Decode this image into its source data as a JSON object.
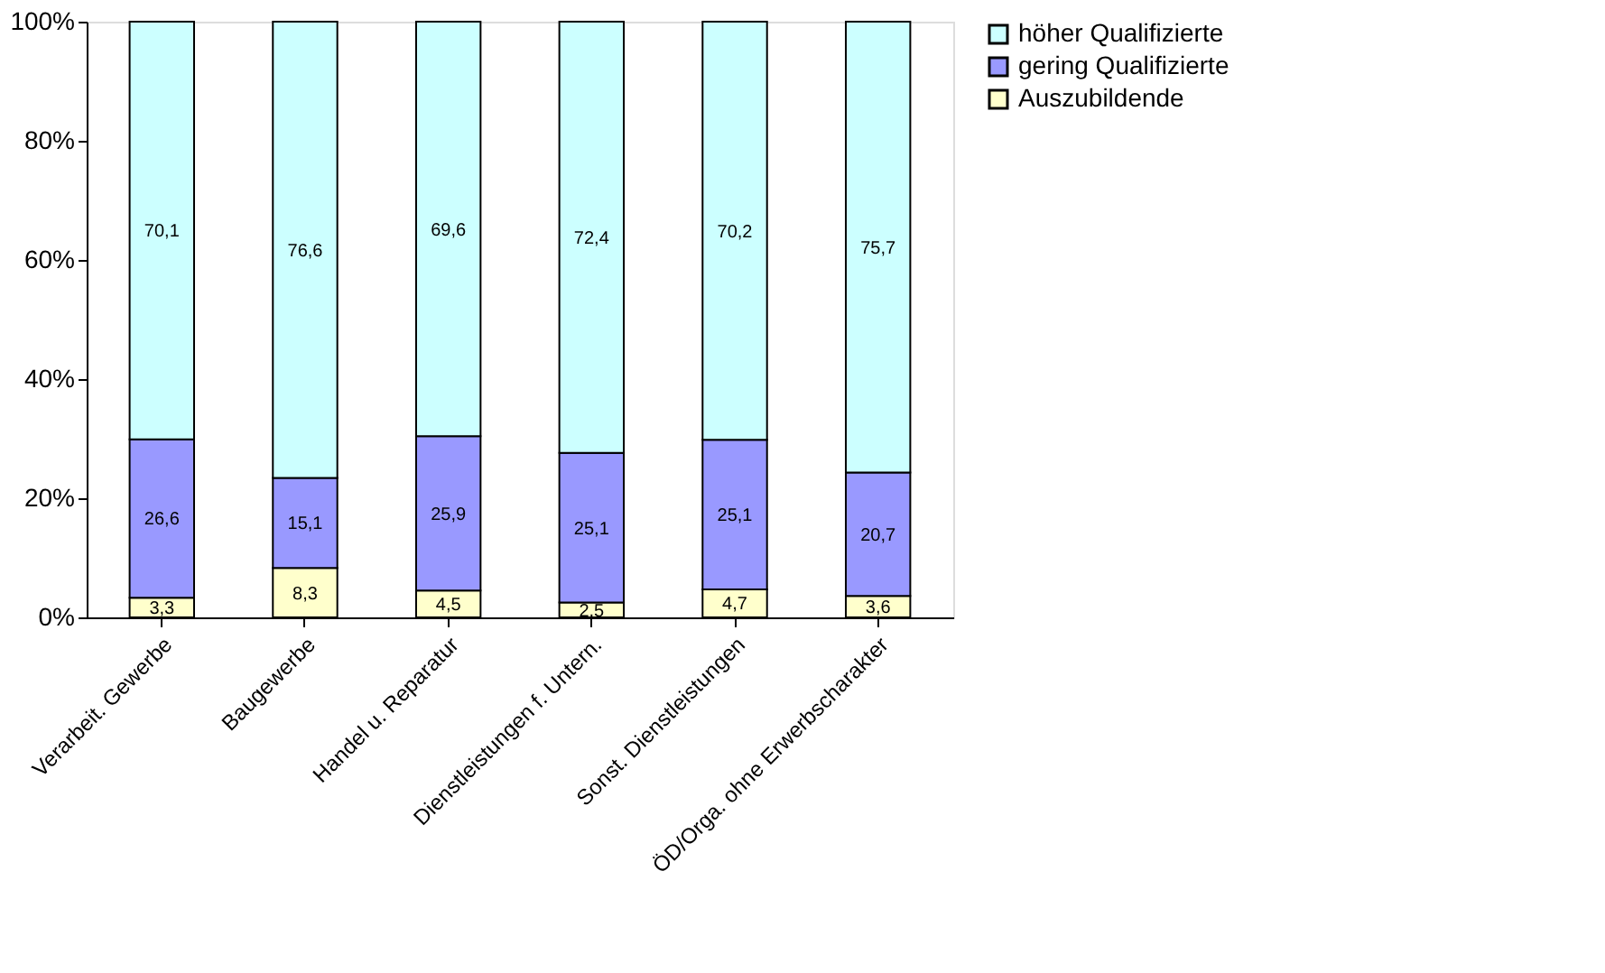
{
  "chart_data": {
    "type": "bar",
    "stacked": true,
    "categories": [
      "Verarbeit. Gewerbe",
      "Baugewerbe",
      "Handel u. Reparatur",
      "Dienstleistungen f. Untern.",
      "Sonst. Dienstleistungen",
      "ÖD/Orga. ohne Erwerbscharakter"
    ],
    "series": [
      {
        "name": "Auszubildende",
        "color": "#ffffcc",
        "values": [
          3.3,
          8.3,
          4.5,
          2.5,
          4.7,
          3.6
        ],
        "value_labels": [
          "3,3",
          "8,3",
          "4,5",
          "2,5",
          "4,7",
          "3,6"
        ]
      },
      {
        "name": "gering Qualifizierte",
        "color": "#9999ff",
        "values": [
          26.6,
          15.1,
          25.9,
          25.1,
          25.1,
          20.7
        ],
        "value_labels": [
          "26,6",
          "15,1",
          "25,9",
          "25,1",
          "25,1",
          "20,7"
        ]
      },
      {
        "name": "höher Qualifizierte",
        "color": "#ccffff",
        "values": [
          70.1,
          76.6,
          69.6,
          72.4,
          70.2,
          75.7
        ],
        "value_labels": [
          "70,1",
          "76,6",
          "69,6",
          "72,4",
          "70,2",
          "75,7"
        ]
      }
    ],
    "ylim": [
      0,
      100
    ],
    "yticks": [
      {
        "value": 0,
        "label": "0%"
      },
      {
        "value": 20,
        "label": "20%"
      },
      {
        "value": 40,
        "label": "40%"
      },
      {
        "value": 60,
        "label": "60%"
      },
      {
        "value": 80,
        "label": "80%"
      },
      {
        "value": 100,
        "label": "100%"
      }
    ],
    "grid": false,
    "legend": "right"
  }
}
